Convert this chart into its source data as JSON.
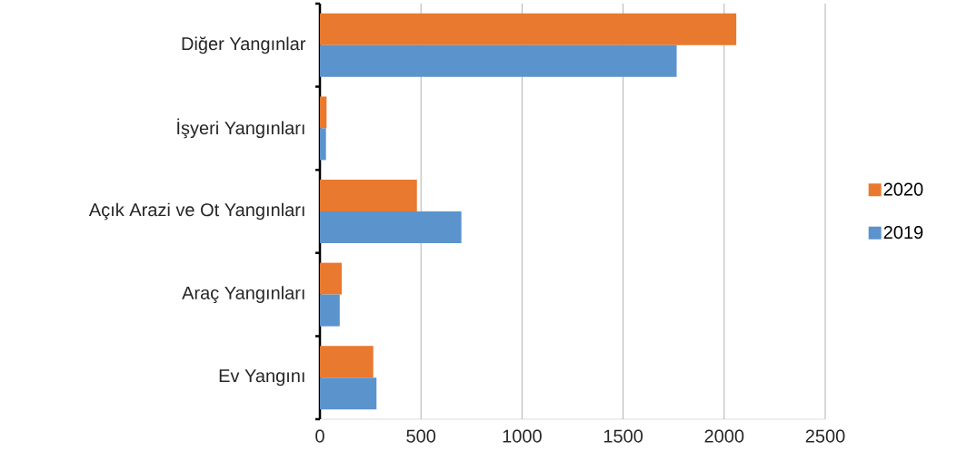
{
  "chart_data": {
    "type": "bar",
    "orientation": "horizontal",
    "categories": [
      "Diğer Yangınlar",
      "İşyeri Yangınları",
      "Açık Arazi ve Ot Yangınları",
      "Araç Yangınları",
      "Ev Yangını"
    ],
    "series": [
      {
        "name": "2020",
        "color": "#e8792f",
        "values": [
          2060,
          33,
          480,
          108,
          264
        ]
      },
      {
        "name": "2019",
        "color": "#5b93cc",
        "values": [
          1765,
          30,
          700,
          98,
          280
        ]
      }
    ],
    "xlim": [
      0,
      2500
    ],
    "xticks": [
      0,
      500,
      1000,
      1500,
      2000,
      2500
    ],
    "grid": "x",
    "legend": "right"
  }
}
